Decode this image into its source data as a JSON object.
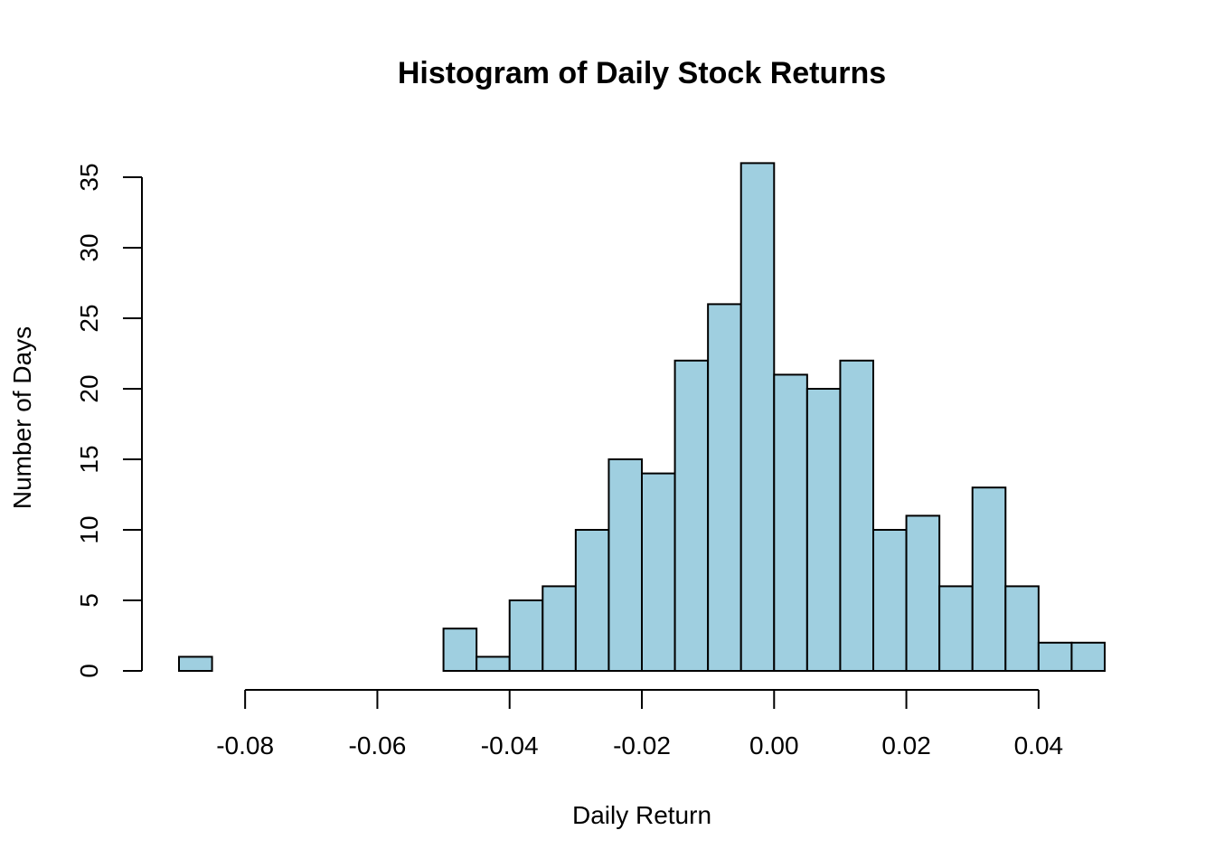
{
  "chart_data": {
    "type": "bar",
    "title": "Histogram of Daily Stock Returns",
    "xlabel": "Daily Return",
    "ylabel": "Number of Days",
    "bin_edges": [
      -0.09,
      -0.085,
      -0.08,
      -0.075,
      -0.07,
      -0.065,
      -0.06,
      -0.055,
      -0.05,
      -0.045,
      -0.04,
      -0.035,
      -0.03,
      -0.025,
      -0.02,
      -0.015,
      -0.01,
      -0.005,
      0.0,
      0.005,
      0.01,
      0.015,
      0.02,
      0.025,
      0.03,
      0.035,
      0.04,
      0.045,
      0.05
    ],
    "values": [
      1,
      0,
      0,
      0,
      0,
      0,
      0,
      0,
      3,
      1,
      5,
      6,
      10,
      15,
      14,
      22,
      26,
      36,
      21,
      20,
      22,
      10,
      11,
      6,
      13,
      6,
      2,
      2
    ],
    "xlim": [
      -0.09,
      0.05
    ],
    "ylim": [
      0,
      35
    ],
    "x_ticks": [
      -0.08,
      -0.06,
      -0.04,
      -0.02,
      0.0,
      0.02,
      0.04
    ],
    "x_tick_labels": [
      "-0.08",
      "-0.06",
      "-0.04",
      "-0.02",
      "0.00",
      "0.02",
      "0.04"
    ],
    "y_ticks": [
      0,
      5,
      10,
      15,
      20,
      25,
      30,
      35
    ],
    "y_tick_labels": [
      "0",
      "5",
      "10",
      "15",
      "20",
      "25",
      "30",
      "35"
    ],
    "bar_color": "#9fcfe0",
    "edge_color": "#000000",
    "grid": false
  }
}
